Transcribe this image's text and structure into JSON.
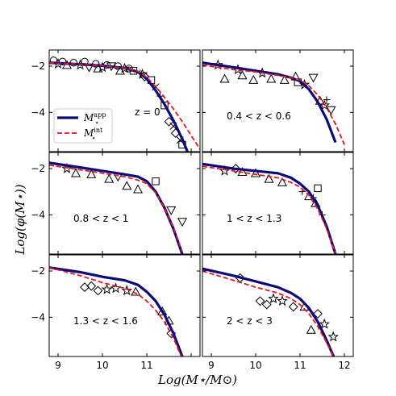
{
  "chart_data": {
    "type": "line",
    "xlabel": "Log(M⋆/M⊙)",
    "ylabel": "Log(φ(M⋆))",
    "xlim": [
      8.8,
      12.2
    ],
    "ylim": [
      -5.7,
      -1.3
    ],
    "xticks": [
      9,
      10,
      11,
      12
    ],
    "yticks": [
      -4,
      -2
    ],
    "xtick_labels": [
      "9",
      "10",
      "11",
      "12"
    ],
    "ytick_labels": [
      "−4",
      "−2"
    ],
    "grid": false,
    "legend": {
      "placement": "left of z = 0 panel",
      "entries": [
        {
          "base": "M",
          "sup": "app",
          "sub": "⋆",
          "color": "#0a0a78",
          "style": "solid"
        },
        {
          "base": "M",
          "sup": "int",
          "sub": "⋆",
          "color": "#e8141e",
          "style": "dashed"
        }
      ]
    },
    "series_colors": {
      "app": "#0a0a78",
      "int": "#e8141e",
      "points": "#000000"
    },
    "panels": [
      {
        "label": "z = 0",
        "app": {
          "x": [
            8.8,
            9.5,
            10.0,
            10.5,
            10.8,
            11.0,
            11.2,
            11.4,
            11.6,
            11.8,
            12.0
          ],
          "y": [
            -1.85,
            -1.92,
            -1.98,
            -2.08,
            -2.25,
            -2.55,
            -3.05,
            -3.65,
            -4.35,
            -5.15,
            -6.1
          ]
        },
        "int": {
          "x": [
            8.8,
            9.5,
            10.0,
            10.5,
            10.8,
            11.0,
            11.2,
            11.4,
            11.6,
            11.8,
            12.0,
            12.2
          ],
          "y": [
            -1.85,
            -1.92,
            -1.98,
            -2.08,
            -2.22,
            -2.48,
            -2.88,
            -3.35,
            -3.85,
            -4.4,
            -5.0,
            -5.6
          ]
        },
        "points": [
          {
            "m": "circle",
            "x": 8.9,
            "y": -1.75
          },
          {
            "m": "circle",
            "x": 9.1,
            "y": -1.8
          },
          {
            "m": "circle",
            "x": 9.35,
            "y": -1.85
          },
          {
            "m": "circle",
            "x": 9.6,
            "y": -1.8
          },
          {
            "m": "circle",
            "x": 9.85,
            "y": -1.9
          },
          {
            "m": "circle",
            "x": 10.1,
            "y": -1.95
          },
          {
            "m": "circle",
            "x": 10.35,
            "y": -2.0
          },
          {
            "m": "circle",
            "x": 10.6,
            "y": -2.1
          },
          {
            "m": "star",
            "x": 9.0,
            "y": -1.9
          },
          {
            "m": "star",
            "x": 9.5,
            "y": -1.95
          },
          {
            "m": "star",
            "x": 10.0,
            "y": -2.05
          },
          {
            "m": "star",
            "x": 10.5,
            "y": -2.1
          },
          {
            "m": "star",
            "x": 10.9,
            "y": -2.35
          },
          {
            "m": "triangle",
            "x": 9.2,
            "y": -1.95
          },
          {
            "m": "triangle",
            "x": 9.9,
            "y": -2.1
          },
          {
            "m": "triangle",
            "x": 10.4,
            "y": -2.2
          },
          {
            "m": "tridown",
            "x": 9.7,
            "y": -2.05
          },
          {
            "m": "tridown",
            "x": 10.2,
            "y": -2.0
          },
          {
            "m": "square",
            "x": 10.7,
            "y": -2.2
          },
          {
            "m": "square",
            "x": 11.1,
            "y": -2.6
          },
          {
            "m": "square",
            "x": 11.4,
            "y": -3.7
          },
          {
            "m": "square",
            "x": 11.8,
            "y": -5.4
          },
          {
            "m": "diamond",
            "x": 10.95,
            "y": -2.45
          },
          {
            "m": "diamond",
            "x": 11.5,
            "y": -4.4
          },
          {
            "m": "diamond",
            "x": 11.65,
            "y": -4.9
          },
          {
            "m": "plus",
            "x": 10.85,
            "y": -2.3
          },
          {
            "m": "plus",
            "x": 11.3,
            "y": -3.3
          },
          {
            "m": "cross",
            "x": 11.2,
            "y": -2.9
          },
          {
            "m": "cross",
            "x": 11.6,
            "y": -4.6
          },
          {
            "m": "cross",
            "x": 11.75,
            "y": -5.2
          }
        ]
      },
      {
        "label": "0.4 < z < 0.6",
        "app": {
          "x": [
            8.8,
            9.5,
            10.0,
            10.5,
            10.8,
            11.0,
            11.2,
            11.4,
            11.6,
            11.8
          ],
          "y": [
            -1.85,
            -2.05,
            -2.2,
            -2.35,
            -2.5,
            -2.65,
            -3.0,
            -3.55,
            -4.3,
            -5.3
          ]
        },
        "int": {
          "x": [
            8.8,
            9.5,
            10.0,
            10.5,
            10.8,
            11.0,
            11.2,
            11.4,
            11.6,
            11.8,
            12.0
          ],
          "y": [
            -1.95,
            -2.15,
            -2.25,
            -2.4,
            -2.5,
            -2.6,
            -2.85,
            -3.25,
            -3.8,
            -4.5,
            -5.4
          ]
        },
        "points": [
          {
            "m": "star",
            "x": 9.15,
            "y": -1.95
          },
          {
            "m": "star",
            "x": 9.6,
            "y": -2.15
          },
          {
            "m": "star",
            "x": 10.15,
            "y": -2.3
          },
          {
            "m": "star",
            "x": 11.1,
            "y": -2.8
          },
          {
            "m": "star",
            "x": 11.55,
            "y": -3.7
          },
          {
            "m": "triangle",
            "x": 9.3,
            "y": -2.55
          },
          {
            "m": "triangle",
            "x": 9.7,
            "y": -2.4
          },
          {
            "m": "triangle",
            "x": 9.95,
            "y": -2.6
          },
          {
            "m": "triangle",
            "x": 10.35,
            "y": -2.55
          },
          {
            "m": "triangle",
            "x": 10.65,
            "y": -2.6
          },
          {
            "m": "triangle",
            "x": 10.9,
            "y": -2.45
          },
          {
            "m": "triangle",
            "x": 11.45,
            "y": -3.5
          },
          {
            "m": "square",
            "x": 10.95,
            "y": -2.7
          },
          {
            "m": "tridown",
            "x": 11.3,
            "y": -2.5
          },
          {
            "m": "tridown",
            "x": 11.7,
            "y": -3.9
          },
          {
            "m": "plus",
            "x": 11.6,
            "y": -3.45
          }
        ]
      },
      {
        "label": "0.8 < z < 1",
        "app": {
          "x": [
            8.8,
            9.5,
            10.0,
            10.5,
            10.8,
            11.0,
            11.2,
            11.4,
            11.6,
            11.8
          ],
          "y": [
            -1.75,
            -1.95,
            -2.1,
            -2.25,
            -2.35,
            -2.55,
            -3.0,
            -3.7,
            -4.6,
            -5.7
          ]
        },
        "int": {
          "x": [
            8.8,
            9.5,
            10.0,
            10.5,
            10.8,
            11.0,
            11.2,
            11.4,
            11.6,
            11.8
          ],
          "y": [
            -1.85,
            -2.05,
            -2.2,
            -2.35,
            -2.5,
            -2.65,
            -3.05,
            -3.7,
            -4.55,
            -5.6
          ]
        },
        "points": [
          {
            "m": "star",
            "x": 9.2,
            "y": -2.0
          },
          {
            "m": "triangle",
            "x": 9.4,
            "y": -2.2
          },
          {
            "m": "triangle",
            "x": 9.75,
            "y": -2.25
          },
          {
            "m": "triangle",
            "x": 10.15,
            "y": -2.45
          },
          {
            "m": "triangle",
            "x": 10.55,
            "y": -2.75
          },
          {
            "m": "triangle",
            "x": 10.8,
            "y": -2.9
          },
          {
            "m": "tridown",
            "x": 10.35,
            "y": -2.35
          },
          {
            "m": "tridown",
            "x": 11.55,
            "y": -3.8
          },
          {
            "m": "tridown",
            "x": 11.8,
            "y": -4.3
          },
          {
            "m": "square",
            "x": 11.2,
            "y": -2.55
          }
        ]
      },
      {
        "label": "1 < z < 1.3",
        "app": {
          "x": [
            8.8,
            9.5,
            10.0,
            10.5,
            10.8,
            11.0,
            11.2,
            11.4,
            11.6,
            11.8
          ],
          "y": [
            -1.8,
            -2.0,
            -2.1,
            -2.2,
            -2.4,
            -2.65,
            -3.0,
            -3.6,
            -4.5,
            -5.7
          ]
        },
        "int": {
          "x": [
            8.8,
            9.5,
            10.0,
            10.5,
            10.8,
            11.0,
            11.2,
            11.4,
            11.6,
            11.8
          ],
          "y": [
            -1.9,
            -2.1,
            -2.25,
            -2.4,
            -2.6,
            -2.8,
            -3.15,
            -3.75,
            -4.6,
            -5.7
          ]
        },
        "points": [
          {
            "m": "star",
            "x": 9.3,
            "y": -2.1
          },
          {
            "m": "diamond",
            "x": 9.55,
            "y": -2.0
          },
          {
            "m": "triangle",
            "x": 9.7,
            "y": -2.15
          },
          {
            "m": "triangle",
            "x": 10.0,
            "y": -2.2
          },
          {
            "m": "triangle",
            "x": 10.3,
            "y": -2.45
          },
          {
            "m": "triangle",
            "x": 10.6,
            "y": -2.6
          },
          {
            "m": "triangle",
            "x": 11.2,
            "y": -3.2
          },
          {
            "m": "triangle",
            "x": 11.35,
            "y": -3.5
          },
          {
            "m": "square",
            "x": 11.4,
            "y": -2.85
          },
          {
            "m": "plus",
            "x": 11.05,
            "y": -3.0
          },
          {
            "m": "plus",
            "x": 11.3,
            "y": -3.25
          },
          {
            "m": "plus",
            "x": 11.5,
            "y": -4.0
          }
        ]
      },
      {
        "label": "1.3 < z < 1.6",
        "app": {
          "x": [
            8.8,
            9.5,
            10.0,
            10.5,
            10.8,
            11.0,
            11.2,
            11.4,
            11.6,
            11.8
          ],
          "y": [
            -1.85,
            -2.05,
            -2.25,
            -2.4,
            -2.6,
            -2.9,
            -3.3,
            -3.9,
            -4.7,
            -5.7
          ]
        },
        "int": {
          "x": [
            8.8,
            9.5,
            10.0,
            10.5,
            10.8,
            11.0,
            11.2,
            11.4,
            11.6,
            11.8
          ],
          "y": [
            -1.85,
            -2.2,
            -2.5,
            -2.75,
            -3.0,
            -3.3,
            -3.7,
            -4.2,
            -4.9,
            -5.8
          ]
        },
        "points": [
          {
            "m": "diamond",
            "x": 9.6,
            "y": -2.7
          },
          {
            "m": "diamond",
            "x": 9.75,
            "y": -2.65
          },
          {
            "m": "diamond",
            "x": 9.9,
            "y": -2.85
          },
          {
            "m": "star",
            "x": 10.1,
            "y": -2.8
          },
          {
            "m": "star",
            "x": 10.3,
            "y": -2.75
          },
          {
            "m": "star",
            "x": 10.55,
            "y": -2.85
          },
          {
            "m": "triangle",
            "x": 10.75,
            "y": -2.9
          },
          {
            "m": "triangle",
            "x": 11.35,
            "y": -3.75
          },
          {
            "m": "triangle",
            "x": 11.5,
            "y": -4.15
          },
          {
            "m": "diamond",
            "x": 11.55,
            "y": -4.7
          }
        ]
      },
      {
        "label": "2 < z < 3",
        "app": {
          "x": [
            8.8,
            9.5,
            10.0,
            10.5,
            10.8,
            11.0,
            11.2,
            11.4,
            11.6,
            11.8
          ],
          "y": [
            -1.9,
            -2.2,
            -2.45,
            -2.7,
            -2.95,
            -3.2,
            -3.6,
            -4.2,
            -5.0,
            -5.9
          ]
        },
        "int": {
          "x": [
            8.8,
            9.5,
            10.0,
            10.5,
            10.8,
            11.0,
            11.2,
            11.4,
            11.6,
            11.8
          ],
          "y": [
            -2.0,
            -2.4,
            -2.7,
            -2.95,
            -3.2,
            -3.45,
            -3.85,
            -4.4,
            -5.1,
            -5.9
          ]
        },
        "points": [
          {
            "m": "diamond",
            "x": 9.65,
            "y": -2.3
          },
          {
            "m": "diamond",
            "x": 10.1,
            "y": -3.3
          },
          {
            "m": "diamond",
            "x": 10.25,
            "y": -3.45
          },
          {
            "m": "star",
            "x": 10.4,
            "y": -3.2
          },
          {
            "m": "star",
            "x": 10.6,
            "y": -3.3
          },
          {
            "m": "diamond",
            "x": 10.85,
            "y": -3.55
          },
          {
            "m": "triangle",
            "x": 11.1,
            "y": -3.55
          },
          {
            "m": "diamond",
            "x": 11.4,
            "y": -3.85
          },
          {
            "m": "triangle",
            "x": 11.25,
            "y": -4.55
          },
          {
            "m": "star",
            "x": 11.55,
            "y": -4.3
          },
          {
            "m": "star",
            "x": 11.75,
            "y": -4.85
          }
        ]
      }
    ]
  }
}
